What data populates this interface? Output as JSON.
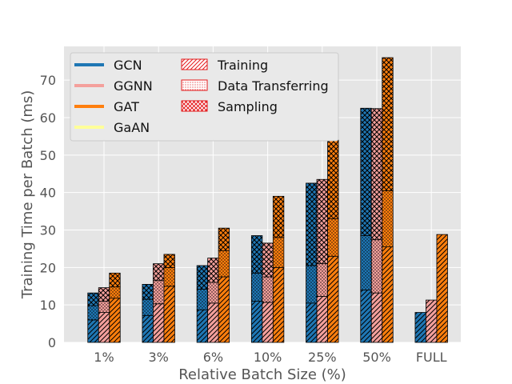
{
  "chart_data": {
    "type": "bar",
    "subtype": "stacked-grouped",
    "title": "",
    "xlabel": "Relative Batch Size (%)",
    "ylabel": "Training Time per Batch (ms)",
    "ylim": [
      0,
      79
    ],
    "yticks": [
      0,
      10,
      20,
      30,
      40,
      50,
      60,
      70
    ],
    "categories": [
      "1%",
      "3%",
      "6%",
      "10%",
      "25%",
      "50%",
      "FULL"
    ],
    "grid": true,
    "legend_position": "upper-left",
    "series": [
      {
        "name": "GCN",
        "color": "#1f77b4",
        "training": [
          6.0,
          7.2,
          8.7,
          11.0,
          10.5,
          14.0,
          8.0
        ],
        "data_transferring": [
          3.8,
          4.3,
          5.5,
          7.5,
          10.0,
          14.5,
          0
        ],
        "sampling": [
          3.4,
          4.0,
          6.3,
          10.0,
          22.0,
          34.0,
          0
        ]
      },
      {
        "name": "GGNN",
        "color": "#f4a09c",
        "training": [
          8.0,
          10.3,
          10.5,
          10.7,
          12.3,
          13.2,
          11.3
        ],
        "data_transferring": [
          3.0,
          6.2,
          5.5,
          6.8,
          8.7,
          14.2,
          0
        ],
        "sampling": [
          3.6,
          4.5,
          6.5,
          9.0,
          22.5,
          35.0,
          0
        ]
      },
      {
        "name": "GAT",
        "color": "#ff7f0e",
        "training": [
          11.8,
          15.0,
          17.5,
          20.0,
          23.0,
          25.5,
          28.8
        ],
        "data_transferring": [
          3.0,
          5.0,
          7.0,
          8.0,
          10.0,
          15.0,
          0
        ],
        "sampling": [
          3.7,
          3.5,
          6.0,
          11.0,
          21.0,
          35.5,
          0
        ]
      },
      {
        "name": "GaAN",
        "color": "#ffff99",
        "training": [
          0,
          0,
          0,
          0,
          0,
          0,
          0
        ],
        "data_transferring": [
          0,
          0,
          0,
          0,
          0,
          0,
          0
        ],
        "sampling": [
          0,
          0,
          0,
          0,
          0,
          0,
          0
        ]
      }
    ],
    "phases": [
      {
        "key": "training",
        "name": "Training",
        "hatch": "diagonal"
      },
      {
        "key": "data_transferring",
        "name": "Data Transferring",
        "hatch": "dots"
      },
      {
        "key": "sampling",
        "name": "Sampling",
        "hatch": "crosshatch"
      }
    ]
  }
}
